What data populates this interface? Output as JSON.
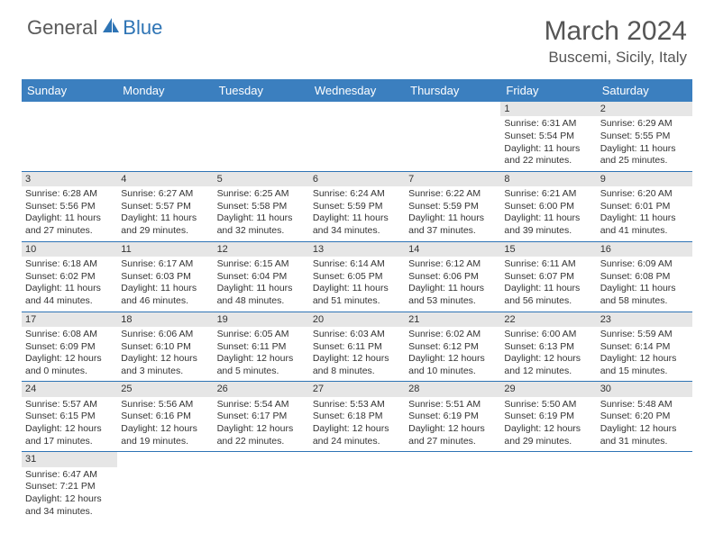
{
  "logo": {
    "text1": "General",
    "text2": "Blue",
    "color1": "#5a5a5a",
    "color2": "#2e74b5"
  },
  "title": "March 2024",
  "location": "Buscemi, Sicily, Italy",
  "colors": {
    "header_bg": "#3b7fbf",
    "header_text": "#ffffff",
    "row_border": "#2e74b5",
    "daynum_bg": "#e6e6e6",
    "text": "#333333",
    "page_bg": "#ffffff"
  },
  "day_labels": [
    "Sunday",
    "Monday",
    "Tuesday",
    "Wednesday",
    "Thursday",
    "Friday",
    "Saturday"
  ],
  "weeks": [
    [
      null,
      null,
      null,
      null,
      null,
      {
        "n": "1",
        "sr": "6:31 AM",
        "ss": "5:54 PM",
        "dl": "11 hours and 22 minutes."
      },
      {
        "n": "2",
        "sr": "6:29 AM",
        "ss": "5:55 PM",
        "dl": "11 hours and 25 minutes."
      }
    ],
    [
      {
        "n": "3",
        "sr": "6:28 AM",
        "ss": "5:56 PM",
        "dl": "11 hours and 27 minutes."
      },
      {
        "n": "4",
        "sr": "6:27 AM",
        "ss": "5:57 PM",
        "dl": "11 hours and 29 minutes."
      },
      {
        "n": "5",
        "sr": "6:25 AM",
        "ss": "5:58 PM",
        "dl": "11 hours and 32 minutes."
      },
      {
        "n": "6",
        "sr": "6:24 AM",
        "ss": "5:59 PM",
        "dl": "11 hours and 34 minutes."
      },
      {
        "n": "7",
        "sr": "6:22 AM",
        "ss": "5:59 PM",
        "dl": "11 hours and 37 minutes."
      },
      {
        "n": "8",
        "sr": "6:21 AM",
        "ss": "6:00 PM",
        "dl": "11 hours and 39 minutes."
      },
      {
        "n": "9",
        "sr": "6:20 AM",
        "ss": "6:01 PM",
        "dl": "11 hours and 41 minutes."
      }
    ],
    [
      {
        "n": "10",
        "sr": "6:18 AM",
        "ss": "6:02 PM",
        "dl": "11 hours and 44 minutes."
      },
      {
        "n": "11",
        "sr": "6:17 AM",
        "ss": "6:03 PM",
        "dl": "11 hours and 46 minutes."
      },
      {
        "n": "12",
        "sr": "6:15 AM",
        "ss": "6:04 PM",
        "dl": "11 hours and 48 minutes."
      },
      {
        "n": "13",
        "sr": "6:14 AM",
        "ss": "6:05 PM",
        "dl": "11 hours and 51 minutes."
      },
      {
        "n": "14",
        "sr": "6:12 AM",
        "ss": "6:06 PM",
        "dl": "11 hours and 53 minutes."
      },
      {
        "n": "15",
        "sr": "6:11 AM",
        "ss": "6:07 PM",
        "dl": "11 hours and 56 minutes."
      },
      {
        "n": "16",
        "sr": "6:09 AM",
        "ss": "6:08 PM",
        "dl": "11 hours and 58 minutes."
      }
    ],
    [
      {
        "n": "17",
        "sr": "6:08 AM",
        "ss": "6:09 PM",
        "dl": "12 hours and 0 minutes."
      },
      {
        "n": "18",
        "sr": "6:06 AM",
        "ss": "6:10 PM",
        "dl": "12 hours and 3 minutes."
      },
      {
        "n": "19",
        "sr": "6:05 AM",
        "ss": "6:11 PM",
        "dl": "12 hours and 5 minutes."
      },
      {
        "n": "20",
        "sr": "6:03 AM",
        "ss": "6:11 PM",
        "dl": "12 hours and 8 minutes."
      },
      {
        "n": "21",
        "sr": "6:02 AM",
        "ss": "6:12 PM",
        "dl": "12 hours and 10 minutes."
      },
      {
        "n": "22",
        "sr": "6:00 AM",
        "ss": "6:13 PM",
        "dl": "12 hours and 12 minutes."
      },
      {
        "n": "23",
        "sr": "5:59 AM",
        "ss": "6:14 PM",
        "dl": "12 hours and 15 minutes."
      }
    ],
    [
      {
        "n": "24",
        "sr": "5:57 AM",
        "ss": "6:15 PM",
        "dl": "12 hours and 17 minutes."
      },
      {
        "n": "25",
        "sr": "5:56 AM",
        "ss": "6:16 PM",
        "dl": "12 hours and 19 minutes."
      },
      {
        "n": "26",
        "sr": "5:54 AM",
        "ss": "6:17 PM",
        "dl": "12 hours and 22 minutes."
      },
      {
        "n": "27",
        "sr": "5:53 AM",
        "ss": "6:18 PM",
        "dl": "12 hours and 24 minutes."
      },
      {
        "n": "28",
        "sr": "5:51 AM",
        "ss": "6:19 PM",
        "dl": "12 hours and 27 minutes."
      },
      {
        "n": "29",
        "sr": "5:50 AM",
        "ss": "6:19 PM",
        "dl": "12 hours and 29 minutes."
      },
      {
        "n": "30",
        "sr": "5:48 AM",
        "ss": "6:20 PM",
        "dl": "12 hours and 31 minutes."
      }
    ],
    [
      {
        "n": "31",
        "sr": "6:47 AM",
        "ss": "7:21 PM",
        "dl": "12 hours and 34 minutes."
      },
      null,
      null,
      null,
      null,
      null,
      null
    ]
  ],
  "labels": {
    "sunrise": "Sunrise:",
    "sunset": "Sunset:",
    "daylight": "Daylight:"
  }
}
